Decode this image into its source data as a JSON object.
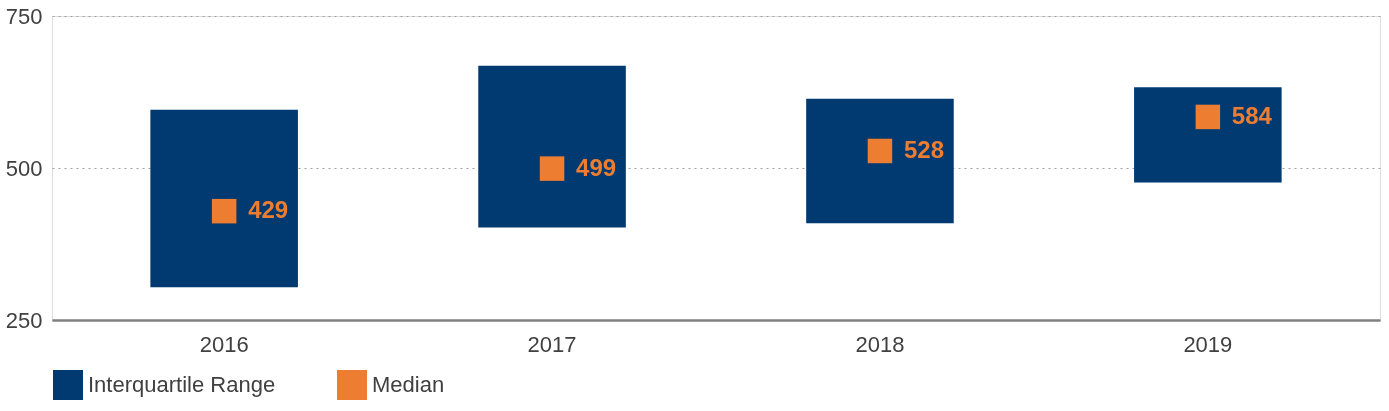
{
  "chart_data": {
    "type": "bar",
    "categories": [
      "2016",
      "2017",
      "2018",
      "2019"
    ],
    "ylim": [
      250,
      750
    ],
    "yticks": [
      250,
      500,
      750
    ],
    "grid": "y",
    "legend": "bottom",
    "series": [
      {
        "name": "Interquartile Range",
        "color": "#003a70",
        "values": [
          292,
          266,
          205,
          157
        ],
        "base": [
          304,
          402,
          409,
          476
        ]
      },
      {
        "name": "Median",
        "type": "scatter",
        "marker": "square",
        "color": "#ed7d31",
        "values": [
          429,
          499,
          528,
          584
        ],
        "data_labels": true
      }
    ]
  }
}
